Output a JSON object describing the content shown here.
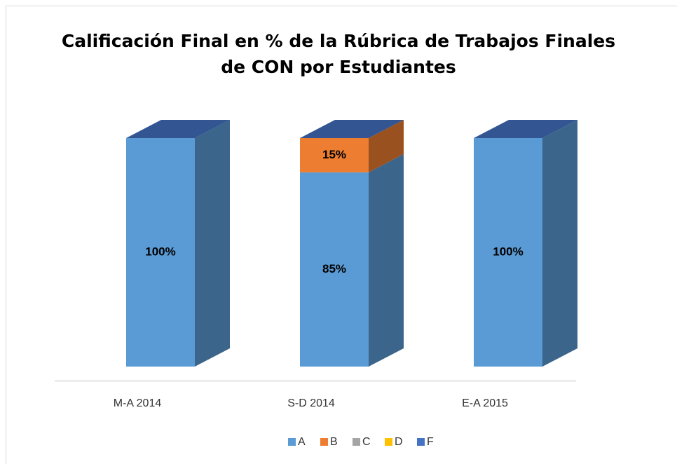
{
  "chart_data": {
    "type": "bar3d_stacked",
    "title": "Calificación Final en % de la Rúbrica de Trabajos Finales",
    "subtitle": "de CON por Estudiantes",
    "categories": [
      "M-A 2014",
      "S-D 2014",
      "E-A 2015"
    ],
    "series": [
      {
        "name": "A",
        "color": "#5b9bd5",
        "values": [
          100,
          85,
          100
        ],
        "value_labels": [
          "100%",
          "85%",
          "100%"
        ]
      },
      {
        "name": "B",
        "color": "#ed7d31",
        "values": [
          0,
          15,
          0
        ],
        "value_labels": [
          null,
          "15%",
          null
        ]
      },
      {
        "name": "C",
        "color": "#a5a5a5",
        "values": [
          0,
          0,
          0
        ],
        "value_labels": [
          null,
          null,
          null
        ]
      },
      {
        "name": "D",
        "color": "#ffc000",
        "values": [
          0,
          0,
          0
        ],
        "value_labels": [
          null,
          null,
          null
        ]
      },
      {
        "name": "F",
        "color": "#4472c4",
        "values": [
          0,
          0,
          0
        ],
        "value_labels": [
          null,
          null,
          null
        ]
      }
    ],
    "ylim": [
      0,
      100
    ],
    "legend": "bottom"
  }
}
